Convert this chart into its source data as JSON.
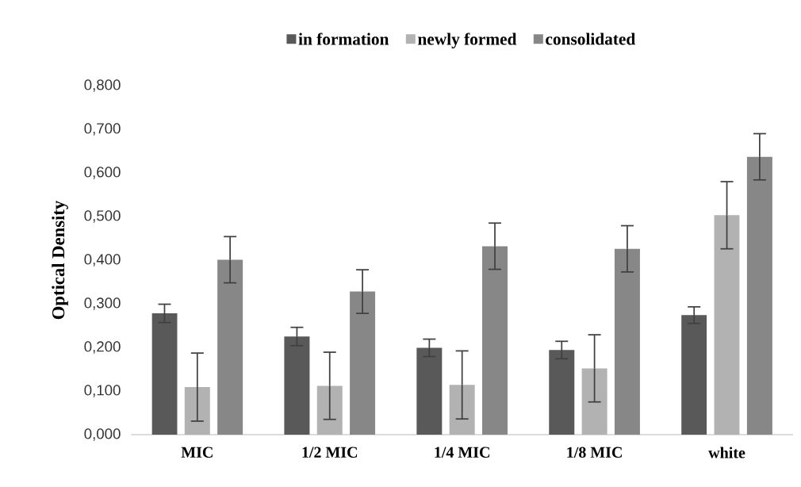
{
  "chart_data": {
    "type": "bar",
    "ylabel": "Optical Density",
    "categories": [
      "MIC",
      "1/2 MIC",
      "1/4 MIC",
      "1/8 MIC",
      "white"
    ],
    "series": [
      {
        "name": "in formation",
        "color": "#595959",
        "values": [
          0.278,
          0.225,
          0.199,
          0.194,
          0.274
        ],
        "errors": [
          0.021,
          0.021,
          0.02,
          0.02,
          0.019
        ]
      },
      {
        "name": "newly formed",
        "color": "#b2b2b2",
        "values": [
          0.109,
          0.112,
          0.114,
          0.152,
          0.503
        ],
        "errors": [
          0.078,
          0.077,
          0.078,
          0.077,
          0.077
        ]
      },
      {
        "name": "consolidated",
        "color": "#878787",
        "values": [
          0.401,
          0.328,
          0.432,
          0.426,
          0.637
        ],
        "errors": [
          0.053,
          0.05,
          0.053,
          0.053,
          0.053
        ]
      }
    ],
    "ylim": [
      0,
      0.8
    ],
    "yticks": [
      {
        "value": 0,
        "label": "0,000"
      },
      {
        "value": 0.1,
        "label": "0,100"
      },
      {
        "value": 0.2,
        "label": "0,200"
      },
      {
        "value": 0.3,
        "label": "0,300"
      },
      {
        "value": 0.4,
        "label": "0,400"
      },
      {
        "value": 0.5,
        "label": "0,500"
      },
      {
        "value": 0.6,
        "label": "0,600"
      },
      {
        "value": 0.7,
        "label": "0,700"
      },
      {
        "value": 0.8,
        "label": "0,800"
      }
    ],
    "grid": false,
    "legend": "top"
  }
}
